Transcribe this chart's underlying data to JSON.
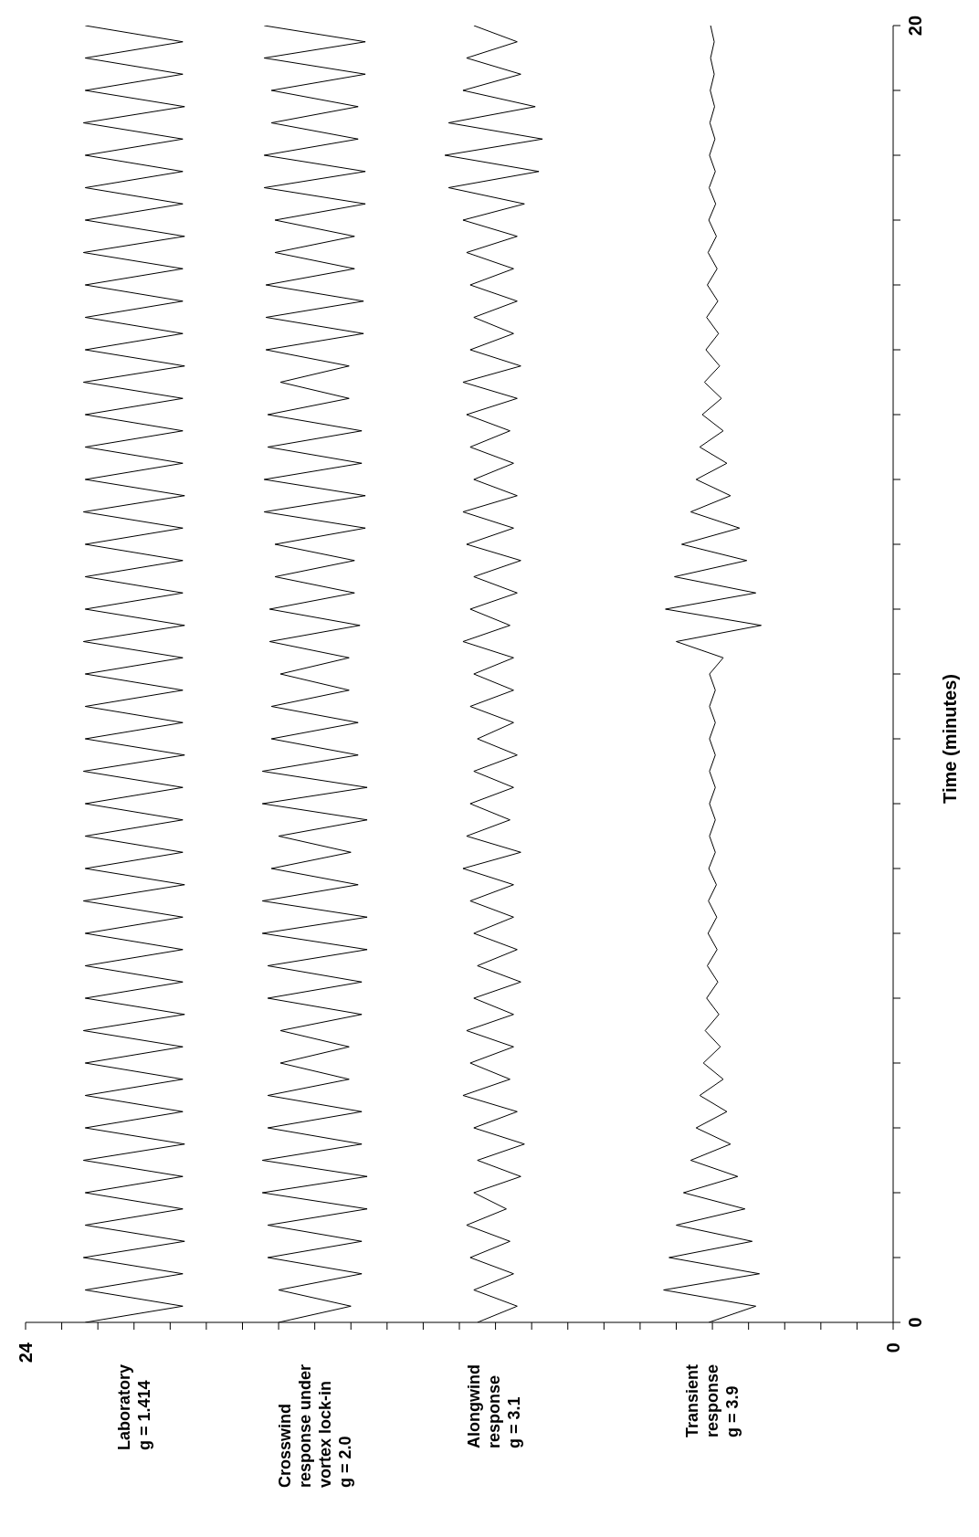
{
  "chart_data": {
    "type": "line",
    "ylabel": "Time (minutes)",
    "x": [
      0,
      0.25,
      0.5,
      0.75,
      1,
      1.25,
      1.5,
      1.75,
      2,
      2.25,
      2.5,
      2.75,
      3,
      3.25,
      3.5,
      3.75,
      4,
      4.25,
      4.5,
      4.75,
      5,
      5.25,
      5.5,
      5.75,
      6,
      6.25,
      6.5,
      6.75,
      7,
      7.25,
      7.5,
      7.75,
      8,
      8.25,
      8.5,
      8.75,
      9,
      9.25,
      9.5,
      9.75,
      10,
      10.25,
      10.5,
      10.75,
      11,
      11.25,
      11.5,
      11.75,
      12,
      12.25,
      12.5,
      12.75,
      13,
      13.25,
      13.5,
      13.75,
      14,
      14.25,
      14.5,
      14.75,
      15,
      15.25,
      15.5,
      15.75,
      16,
      16.25,
      16.5,
      16.75,
      17,
      17.25,
      17.5,
      17.75,
      18,
      18.25,
      18.5,
      18.75,
      19,
      19.25,
      19.5,
      19.75,
      20
    ],
    "ylim": [
      0,
      20
    ],
    "yticks": [
      0,
      {
        "value": 1,
        "label": null
      },
      {
        "value": 2,
        "label": null
      },
      {
        "value": 3,
        "label": null
      },
      {
        "value": 4,
        "label": null
      },
      {
        "value": 5,
        "label": null
      },
      {
        "value": 6,
        "label": null
      },
      {
        "value": 7,
        "label": null
      },
      {
        "value": 8,
        "label": null
      },
      {
        "value": 9,
        "label": null
      },
      {
        "value": 10,
        "label": null
      },
      {
        "value": 11,
        "label": null
      },
      {
        "value": 12,
        "label": null
      },
      {
        "value": 13,
        "label": null
      },
      {
        "value": 14,
        "label": null
      },
      {
        "value": 15,
        "label": null
      },
      {
        "value": 16,
        "label": null
      },
      {
        "value": 17,
        "label": null
      },
      {
        "value": 18,
        "label": null
      },
      {
        "value": 19,
        "label": null
      },
      20
    ],
    "xlim": [
      24,
      0
    ],
    "xticks": [
      0,
      {
        "value": 1,
        "label": null
      },
      {
        "value": 2,
        "label": null
      },
      {
        "value": 3,
        "label": null
      },
      {
        "value": 4,
        "label": null
      },
      {
        "value": 5,
        "label": null
      },
      {
        "value": 6,
        "label": null
      },
      {
        "value": 7,
        "label": null
      },
      {
        "value": 8,
        "label": null
      },
      {
        "value": 9,
        "label": null
      },
      {
        "value": 10,
        "label": null
      },
      {
        "value": 11,
        "label": null
      },
      {
        "value": 12,
        "label": null
      },
      {
        "value": 13,
        "label": null
      },
      {
        "value": 14,
        "label": null
      },
      {
        "value": 15,
        "label": null
      },
      {
        "value": 16,
        "label": null
      },
      {
        "value": 17,
        "label": null
      },
      {
        "value": 18,
        "label": null
      },
      {
        "value": 19,
        "label": null
      },
      {
        "value": 20,
        "label": null
      },
      {
        "value": 21,
        "label": null
      },
      {
        "value": 22,
        "label": null
      },
      {
        "value": 23,
        "label": null
      },
      24
    ],
    "orientation": "horizontal",
    "grid": false,
    "marker": "none",
    "line_style": "solid",
    "series": [
      {
        "name": "Laboratory\ng = 1.414",
        "color": "#000000",
        "values": [
          22.35,
          19.65,
          22.35,
          19.65,
          22.4,
          19.6,
          22.35,
          19.65,
          22.35,
          19.65,
          22.4,
          19.6,
          22.35,
          19.65,
          22.35,
          19.65,
          22.35,
          19.65,
          22.4,
          19.6,
          22.35,
          19.65,
          22.35,
          19.65,
          22.35,
          19.65,
          22.4,
          19.6,
          22.35,
          19.65,
          22.35,
          19.65,
          22.35,
          19.65,
          22.4,
          19.6,
          22.35,
          19.65,
          22.35,
          19.65,
          22.35,
          19.65,
          22.4,
          19.6,
          22.35,
          19.65,
          22.35,
          19.65,
          22.35,
          19.65,
          22.4,
          19.6,
          22.35,
          19.65,
          22.35,
          19.65,
          22.35,
          19.65,
          22.4,
          19.6,
          22.35,
          19.65,
          22.35,
          19.65,
          22.35,
          19.65,
          22.4,
          19.6,
          22.35,
          19.65,
          22.35,
          19.65,
          22.35,
          19.65,
          22.4,
          19.6,
          22.35,
          19.65,
          22.35,
          19.65,
          22.35
        ]
      },
      {
        "name": "Crosswind\nresponse under\nvortex lock-in\ng = 2.0",
        "color": "#000000",
        "values": [
          17.0,
          15.0,
          17.0,
          14.7,
          17.3,
          14.7,
          17.3,
          14.55,
          17.45,
          14.55,
          17.45,
          14.7,
          17.3,
          14.7,
          17.3,
          15.05,
          16.95,
          15.05,
          16.95,
          14.7,
          17.3,
          14.7,
          17.3,
          14.55,
          17.45,
          14.55,
          17.45,
          14.8,
          17.2,
          15.0,
          17.0,
          14.55,
          17.45,
          14.55,
          17.45,
          14.8,
          17.2,
          14.8,
          17.2,
          15.05,
          16.95,
          15.05,
          17.25,
          14.75,
          17.25,
          14.9,
          17.1,
          14.9,
          17.1,
          14.6,
          17.4,
          14.6,
          17.4,
          14.7,
          17.3,
          14.7,
          17.3,
          15.05,
          16.95,
          15.05,
          17.35,
          14.65,
          17.35,
          14.65,
          17.35,
          14.9,
          17.1,
          14.9,
          17.1,
          14.6,
          17.4,
          14.6,
          17.4,
          14.8,
          17.2,
          14.8,
          17.2,
          14.6,
          17.4,
          14.6,
          17.4
        ]
      },
      {
        "name": "Alongwind\nresponse\ng = 3.1",
        "color": "#000000",
        "values": [
          11.5,
          10.4,
          11.6,
          10.5,
          11.7,
          10.6,
          11.8,
          10.7,
          11.6,
          10.3,
          11.5,
          10.2,
          11.6,
          10.4,
          11.9,
          10.6,
          11.7,
          10.5,
          11.8,
          10.5,
          11.6,
          10.3,
          11.5,
          10.4,
          11.6,
          10.5,
          11.7,
          10.5,
          11.9,
          10.3,
          11.8,
          10.6,
          11.7,
          10.5,
          11.6,
          10.4,
          11.5,
          10.5,
          11.7,
          10.5,
          11.6,
          10.5,
          11.9,
          10.6,
          11.7,
          10.4,
          11.6,
          10.3,
          11.8,
          10.5,
          11.9,
          10.4,
          11.6,
          10.5,
          11.7,
          10.6,
          11.8,
          10.4,
          11.9,
          10.3,
          11.7,
          10.5,
          11.6,
          10.4,
          11.7,
          10.5,
          11.8,
          10.4,
          11.9,
          10.2,
          12.3,
          9.8,
          12.4,
          9.7,
          12.3,
          9.9,
          11.9,
          10.3,
          11.8,
          10.4,
          11.6
        ]
      },
      {
        "name": "Transient\nresponse\ng = 3.9",
        "color": "#000000",
        "values": [
          5.1,
          3.8,
          6.35,
          3.7,
          6.2,
          3.9,
          6.0,
          4.1,
          5.8,
          4.3,
          5.6,
          4.5,
          5.45,
          4.6,
          5.35,
          4.7,
          5.25,
          4.78,
          5.2,
          4.82,
          5.16,
          4.85,
          5.14,
          4.87,
          5.12,
          4.88,
          5.11,
          4.89,
          5.1,
          4.92,
          5.08,
          4.92,
          5.08,
          4.92,
          5.08,
          4.92,
          5.08,
          4.92,
          5.08,
          4.92,
          5.08,
          4.7,
          6.0,
          3.65,
          6.3,
          3.8,
          6.05,
          4.05,
          5.85,
          4.25,
          5.6,
          4.5,
          5.45,
          4.6,
          5.35,
          4.7,
          5.28,
          4.75,
          5.22,
          4.8,
          5.18,
          4.83,
          5.16,
          4.85,
          5.14,
          4.87,
          5.12,
          4.89,
          5.1,
          4.91,
          5.09,
          4.92,
          5.08,
          4.93,
          5.07,
          4.94,
          5.06,
          4.95,
          5.05,
          4.95,
          5.05
        ]
      }
    ]
  }
}
